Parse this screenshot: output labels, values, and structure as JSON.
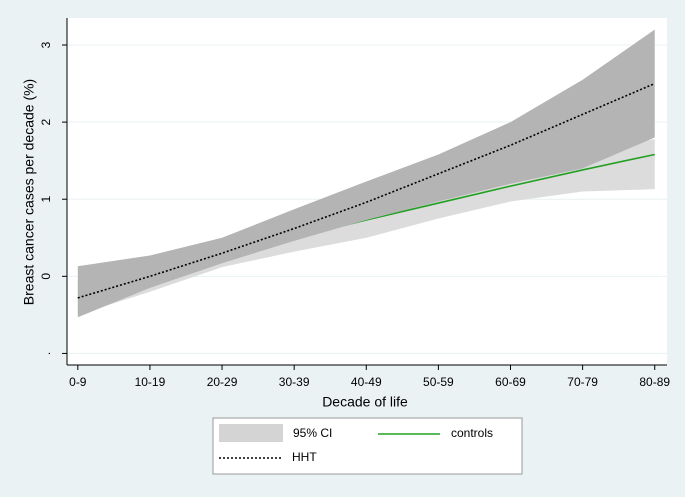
{
  "chart_data": {
    "type": "line",
    "x": [
      0,
      1,
      2,
      3,
      4,
      5,
      6,
      7,
      8
    ],
    "xlim": [
      -0.15,
      8.17
    ],
    "xticks": [
      {
        "value": 0,
        "label": "0-9"
      },
      {
        "value": 1,
        "label": "10-19"
      },
      {
        "value": 2,
        "label": "20-29"
      },
      {
        "value": 3,
        "label": "30-39"
      },
      {
        "value": 4,
        "label": "40-49"
      },
      {
        "value": 5,
        "label": "50-59"
      },
      {
        "value": 6,
        "label": "60-69"
      },
      {
        "value": 7,
        "label": "70-79"
      },
      {
        "value": 8,
        "label": "80-89"
      }
    ],
    "ylim": [
      -1.15,
      3.35
    ],
    "yticks": [
      {
        "value": -1,
        "label": "."
      },
      0,
      1,
      2,
      3
    ],
    "grid": true,
    "xlabel": "Decade of life",
    "ylabel": "Breast cancer cases per decade (%)",
    "ci_label": "95% CI",
    "ci_legend_color": "#d4d4d4",
    "series": [
      {
        "name": "controls",
        "color": "#22a022",
        "dash": false,
        "ci_color": "#dcdcdc",
        "values": [
          -0.28,
          0.0,
          0.25,
          0.5,
          0.73,
          0.95,
          1.17,
          1.38,
          1.58
        ],
        "ci_lower": [
          -0.5,
          -0.2,
          0.12,
          0.32,
          0.5,
          0.75,
          0.97,
          1.1,
          1.13
        ],
        "ci_upper": [
          -0.05,
          0.2,
          0.4,
          0.7,
          0.95,
          1.18,
          1.42,
          1.62,
          1.78
        ]
      },
      {
        "name": "HHT",
        "color": "#000000",
        "dash": true,
        "ci_color": "#b4b4b4",
        "values": [
          -0.28,
          0.0,
          0.3,
          0.62,
          0.96,
          1.33,
          1.7,
          2.1,
          2.5
        ],
        "ci_lower": [
          -0.53,
          -0.15,
          0.17,
          0.46,
          0.73,
          0.97,
          1.2,
          1.4,
          1.8
        ],
        "ci_upper": [
          0.13,
          0.27,
          0.5,
          0.87,
          1.23,
          1.58,
          2.0,
          2.55,
          3.2
        ]
      }
    ]
  }
}
